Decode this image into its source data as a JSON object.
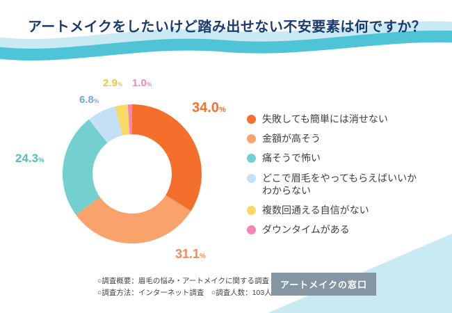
{
  "header": {
    "title": "アートメイクをしたいけど踏み出せない不安要素は何ですか？"
  },
  "chart_data": {
    "type": "pie",
    "donut": true,
    "title": "アートメイクをしたいけど踏み出せない不安要素は何ですか？",
    "categories": [
      "失敗しても簡単には消せない",
      "金額が高そう",
      "痛そうで怖い",
      "どこで眉毛をやってもらえばいいかわからない",
      "複数回通える自信がない",
      "ダウンタイムがある"
    ],
    "values": [
      34.0,
      31.1,
      24.3,
      6.8,
      2.9,
      1.0
    ],
    "percent_labels": [
      "34.0",
      "31.1",
      "24.3",
      "6.8",
      "2.9",
      "1.0"
    ],
    "unit": "%",
    "colors": [
      "#F56F2C",
      "#F9A26B",
      "#74CFCF",
      "#C3E0F5",
      "#F7D964",
      "#F884B6"
    ],
    "label_colors": [
      "#F56F2C",
      "#F58A52",
      "#4FBFC2",
      "#6FA8DC",
      "#EFC83C",
      "#F884B6"
    ],
    "legend_position": "right"
  },
  "footer": {
    "notes": [
      "○調査概要：眉毛の悩み・アートメイクに関する調査",
      "○調査方法：インターネット調査　○調査人数：103人"
    ],
    "badge": "アートメイクの窓口"
  },
  "theme": {
    "title_navy": "#1A3B70",
    "wave_teal": "#4EC4D6",
    "wave_lightblue": "#C9EAF3",
    "badge_gray": "#8596A3"
  }
}
